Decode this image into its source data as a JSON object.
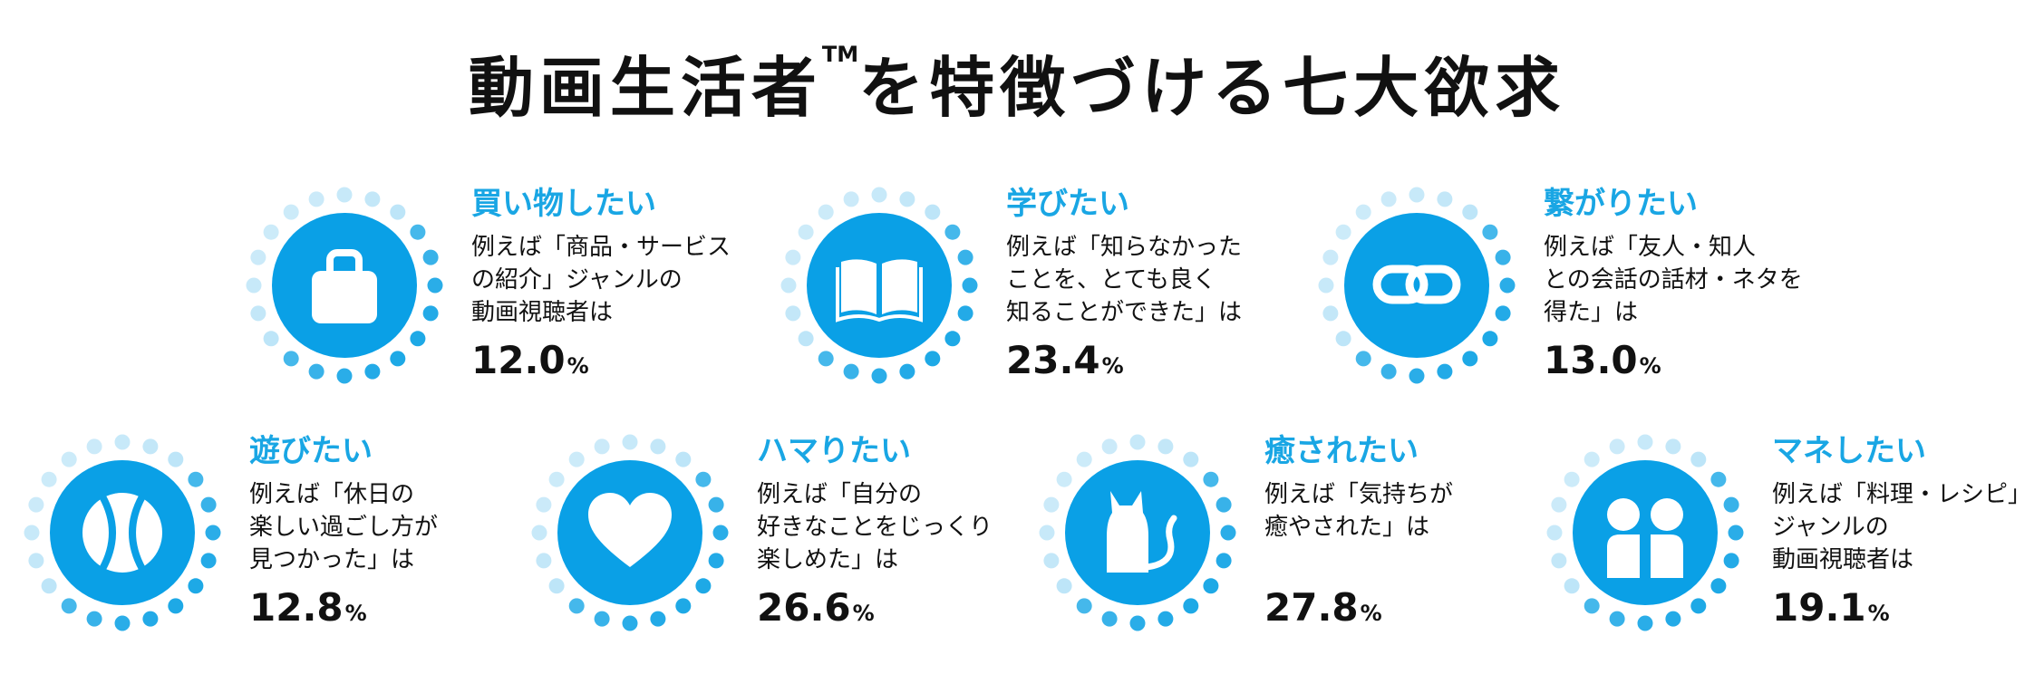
{
  "title": {
    "main": "動画生活者",
    "tm": "TM",
    "rest": "を特徴づける七大欲求"
  },
  "items": [
    {
      "icon": "shopping-bag-icon",
      "heading": "買い物したい",
      "lines": [
        "例えば「商品・サービス",
        "の紹介」ジャンルの",
        "動画視聴者は"
      ],
      "value": "12.0",
      "unit": "%"
    },
    {
      "icon": "book-icon",
      "heading": "学びたい",
      "lines": [
        "例えば「知らなかった",
        "ことを、とても良く",
        "知ることができた」は"
      ],
      "value": "23.4",
      "unit": "%"
    },
    {
      "icon": "chain-link-icon",
      "heading": "繋がりたい",
      "lines": [
        "例えば「友人・知人",
        "との会話の話材・ネタを",
        "得た」は"
      ],
      "value": "13.0",
      "unit": "%"
    },
    {
      "icon": "ball-icon",
      "heading": "遊びたい",
      "lines": [
        "例えば「休日の",
        "楽しい過ごし方が",
        "見つかった」は"
      ],
      "value": "12.8",
      "unit": "%"
    },
    {
      "icon": "heart-icon",
      "heading": "ハマりたい",
      "lines": [
        "例えば「自分の",
        "好きなことをじっくり",
        "楽しめた」は"
      ],
      "value": "26.6",
      "unit": "%"
    },
    {
      "icon": "cat-icon",
      "heading": "癒されたい",
      "lines": [
        "例えば「気持ちが",
        "癒やされた」は"
      ],
      "value": "27.8",
      "unit": "%"
    },
    {
      "icon": "mirror-people-icon",
      "heading": "マネしたい",
      "lines": [
        "例えば「料理・レシピ」",
        "ジャンルの",
        "動画視聴者は"
      ],
      "value": "19.1",
      "unit": "%"
    }
  ],
  "colors": {
    "accent": "#19a6e4",
    "badge": "#0aa0e6",
    "dot_dark": "#1aa7e6",
    "dot_light": "#a6dcf5"
  }
}
